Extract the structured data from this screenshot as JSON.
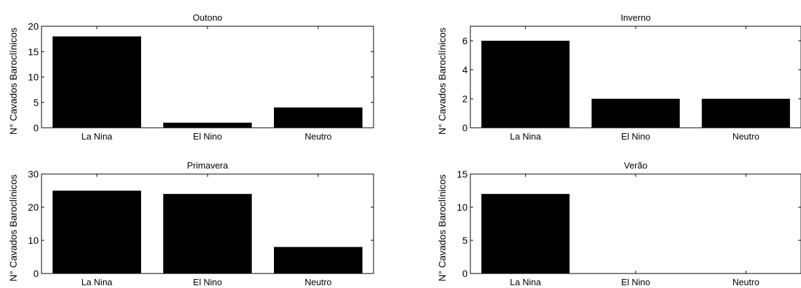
{
  "chart_data": [
    {
      "type": "bar",
      "title": "Outono",
      "ylabel": "N° Cavados Baroclínicos",
      "xlabel": "",
      "categories": [
        "La Nina",
        "El Nino",
        "Neutro"
      ],
      "values": [
        18,
        1,
        4
      ],
      "ylim": [
        0,
        20
      ],
      "yticks": [
        0,
        5,
        10,
        15,
        20
      ],
      "bar_color": "#000000",
      "grid": false
    },
    {
      "type": "bar",
      "title": "Inverno",
      "ylabel": "N° Cavados Baroclínicos",
      "xlabel": "",
      "categories": [
        "La Nina",
        "El Nino",
        "Neutro"
      ],
      "values": [
        6,
        2,
        2
      ],
      "ylim": [
        0,
        7
      ],
      "yticks": [
        0,
        2,
        4,
        6
      ],
      "bar_color": "#000000",
      "grid": false
    },
    {
      "type": "bar",
      "title": "Primavera",
      "ylabel": "N° Cavados Baroclínicos",
      "xlabel": "",
      "categories": [
        "La Nina",
        "El Nino",
        "Neutro"
      ],
      "values": [
        25,
        24,
        8
      ],
      "ylim": [
        0,
        30
      ],
      "yticks": [
        0,
        10,
        20,
        30
      ],
      "bar_color": "#000000",
      "grid": false
    },
    {
      "type": "bar",
      "title": "Verão",
      "ylabel": "N° Cavados Baroclínicos",
      "xlabel": "",
      "categories": [
        "La Nina",
        "El Nino",
        "Neutro"
      ],
      "values": [
        12,
        0,
        0
      ],
      "ylim": [
        0,
        15
      ],
      "yticks": [
        0,
        5,
        10,
        15
      ],
      "bar_color": "#000000",
      "grid": false
    }
  ]
}
